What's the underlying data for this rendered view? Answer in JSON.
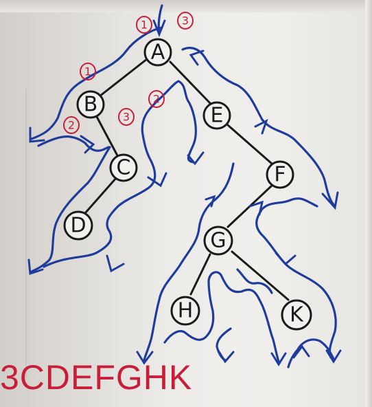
{
  "tree": {
    "nodes": [
      {
        "id": "A",
        "label": "A"
      },
      {
        "id": "B",
        "label": "B"
      },
      {
        "id": "C",
        "label": "C"
      },
      {
        "id": "D",
        "label": "D"
      },
      {
        "id": "E",
        "label": "E"
      },
      {
        "id": "F",
        "label": "F"
      },
      {
        "id": "G",
        "label": "G"
      },
      {
        "id": "H",
        "label": "H"
      },
      {
        "id": "K",
        "label": "K"
      }
    ],
    "edges": [
      [
        "A",
        "B"
      ],
      [
        "B",
        "C"
      ],
      [
        "C",
        "D"
      ],
      [
        "A",
        "E"
      ],
      [
        "E",
        "F"
      ],
      [
        "F",
        "G"
      ],
      [
        "G",
        "H"
      ],
      [
        "G",
        "K"
      ]
    ]
  },
  "markers": [
    {
      "id": "m1-top",
      "label": "1"
    },
    {
      "id": "m3-top",
      "label": "3"
    },
    {
      "id": "m1-b",
      "label": "1"
    },
    {
      "id": "m2-b",
      "label": "2"
    },
    {
      "id": "m3-b",
      "label": "3"
    },
    {
      "id": "m2-a",
      "label": "2"
    }
  ],
  "sequence": "3CDEFGHK",
  "colors": {
    "ink": "#1a1a1a",
    "traversal": "#1f3c9c",
    "annotation": "#c81e3a"
  }
}
